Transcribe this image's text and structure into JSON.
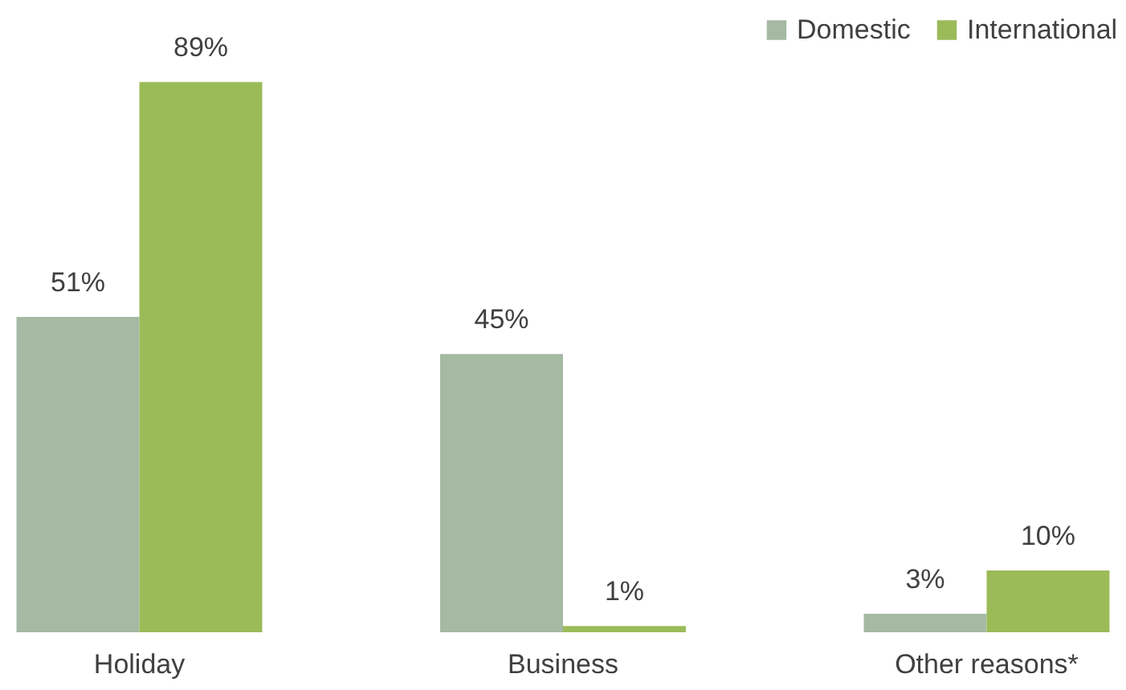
{
  "chart_data": {
    "type": "bar",
    "categories": [
      "Holiday",
      "Business",
      "Other reasons*"
    ],
    "series": [
      {
        "name": "Domestic",
        "color": "#a5b9a3",
        "values": [
          51,
          45,
          3
        ],
        "value_labels": [
          "51%",
          "45%",
          "3%"
        ]
      },
      {
        "name": "International",
        "color": "#9bbb59",
        "values": [
          89,
          1,
          10
        ],
        "value_labels": [
          "89%",
          "1%",
          "10%"
        ]
      }
    ],
    "legend": "top right",
    "grid": false
  }
}
